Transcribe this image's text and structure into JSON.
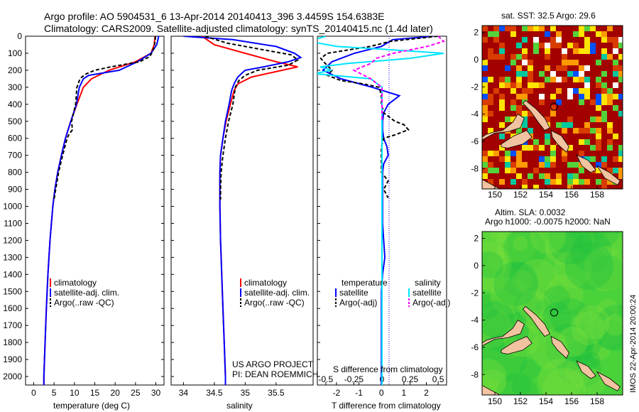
{
  "header": {
    "line1": "Argo profile: AO 5904531_6 13-Apr-2014 20140413_396 3.4459S 154.6383E",
    "line2": "Climatology: CARS2009. Satellite-adjusted climatology: synTS_20140415.nc (1.4d later)"
  },
  "colors": {
    "climatology": "#ff0000",
    "satellite": "#0000ff",
    "argo": "#000000",
    "satellite_s": "#00e5ff",
    "argo_s": "#ff00ff"
  },
  "panels": {
    "temperature": {
      "xlabel": "temperature (deg C)",
      "xticks": [
        "0",
        "5",
        "10",
        "15",
        "20",
        "25",
        "30"
      ]
    },
    "salinity": {
      "xlabel": "salinity",
      "xticks": [
        "34",
        "34.5",
        "35",
        "35.5"
      ]
    },
    "difference": {
      "xlabel": "T difference from climatology",
      "xticks": [
        "-2",
        "-1",
        "0",
        "1",
        "2"
      ],
      "s_label": "S difference from climatology",
      "s_ticks": [
        "-0.5",
        "-0.25",
        "0",
        "0.25",
        "0.5"
      ]
    }
  },
  "yticks": [
    "0",
    "100",
    "200",
    "300",
    "400",
    "500",
    "600",
    "700",
    "800",
    "900",
    "1000",
    "1100",
    "1200",
    "1300",
    "1400",
    "1500",
    "1600",
    "1700",
    "1800",
    "1900",
    "2000"
  ],
  "legend_main": [
    "climatology",
    "satellite-adj. clim.",
    "Argo(..raw -QC)"
  ],
  "legend_diff": {
    "temp_header": "temperature",
    "sal_header": "salinity",
    "items": [
      "satellite",
      "Argo(-adj)",
      "satellite",
      "Argo(-adj)"
    ]
  },
  "project": {
    "line1": "US ARGO PROJECT",
    "line2": "PI: DEAN ROEMMICH"
  },
  "maps": {
    "sst_title": "sat. SST: 32.5 Argo: 29.6",
    "sla_title1": "Altim. SLA: 0.0032",
    "sla_title2": "Argo h1000: -0.0075 h2000: NaN",
    "sst_yticks": [
      "2",
      "0",
      "-2",
      "-4",
      "-6",
      "-8"
    ],
    "sla_yticks": [
      "2",
      "0",
      "-2",
      "-4",
      "-6",
      "-8"
    ],
    "xticks": [
      "150",
      "152",
      "154",
      "156",
      "158"
    ],
    "credit": "IMOS 22-Apr-2014 20:00:24"
  },
  "chart_data": [
    {
      "type": "line",
      "xlabel": "temperature (deg C)",
      "ylabel": "",
      "xlim": [
        -2,
        32
      ],
      "ylim": [
        2050,
        0
      ],
      "series": [
        {
          "name": "climatology",
          "depth": [
            0,
            50,
            100,
            150,
            200,
            250,
            300,
            400,
            500,
            600,
            700,
            800,
            900,
            1000,
            1200,
            1400,
            1600,
            1800,
            2000,
            2050
          ],
          "values": [
            29.8,
            29.6,
            28.8,
            25,
            18.5,
            14.2,
            12.2,
            10.6,
            9.1,
            7.8,
            6.8,
            5.9,
            5.2,
            4.7,
            4,
            3.5,
            3.1,
            2.8,
            2.5,
            2.5
          ]
        },
        {
          "name": "satellite-adj. clim.",
          "depth": [
            0,
            50,
            100,
            150,
            200,
            230,
            250,
            300,
            400,
            500,
            600,
            700,
            800,
            900,
            1000,
            1200,
            1400,
            1600,
            1800,
            2000,
            2050
          ],
          "values": [
            30.7,
            30.2,
            28.8,
            25.5,
            21,
            13.5,
            12.2,
            11.2,
            10.5,
            9.1,
            7.8,
            6.8,
            5.9,
            5.2,
            4.7,
            4,
            3.5,
            3.1,
            2.8,
            2.5,
            2.5
          ]
        },
        {
          "name": "Argo(..raw -QC)",
          "depth": [
            0,
            30,
            60,
            90,
            120,
            150,
            180,
            200,
            220,
            240,
            260,
            300,
            400,
            500,
            550,
            580,
            600,
            700,
            800,
            900,
            960
          ],
          "values": [
            29.9,
            29.8,
            29.6,
            29.2,
            28.5,
            26,
            19,
            15,
            13,
            11.8,
            11.2,
            10.6,
            10.3,
            9.3,
            9.5,
            8.6,
            8.2,
            7.1,
            6.1,
            5.4,
            5
          ]
        }
      ]
    },
    {
      "type": "line",
      "xlabel": "salinity",
      "ylabel": "",
      "xlim": [
        33.8,
        36.1
      ],
      "ylim": [
        2050,
        0
      ],
      "series": [
        {
          "name": "climatology",
          "depth": [
            0,
            50,
            100,
            150,
            180,
            200,
            240,
            280,
            320,
            400,
            500,
            600,
            700,
            800,
            900,
            1000,
            1200,
            1400,
            1600,
            1800,
            2000,
            2050
          ],
          "values": [
            34.3,
            34.5,
            35.0,
            35.5,
            35.85,
            35.6,
            35.1,
            34.88,
            34.82,
            34.76,
            34.69,
            34.64,
            34.6,
            34.59,
            34.59,
            34.59,
            34.6,
            34.62,
            34.64,
            34.66,
            34.68,
            34.68
          ]
        },
        {
          "name": "satellite-adj. clim.",
          "depth": [
            0,
            20,
            60,
            100,
            125,
            150,
            180,
            200,
            240,
            280,
            320,
            400,
            500,
            600,
            700,
            800,
            900,
            1000,
            1200,
            1400,
            1600,
            1800,
            2000,
            2050
          ],
          "values": [
            34.0,
            34.8,
            35.5,
            35.8,
            35.9,
            35.7,
            35.3,
            35.0,
            34.88,
            34.82,
            34.78,
            34.74,
            34.68,
            34.64,
            34.6,
            34.59,
            34.59,
            34.59,
            34.6,
            34.62,
            34.64,
            34.66,
            34.68,
            34.68
          ]
        },
        {
          "name": "Argo(..raw -QC)",
          "depth": [
            0,
            40,
            80,
            110,
            140,
            170,
            200,
            230,
            260,
            300,
            400,
            500,
            600,
            700,
            800,
            900,
            960
          ],
          "values": [
            34.35,
            34.7,
            35.3,
            35.75,
            35.85,
            35.7,
            35.2,
            35.0,
            34.9,
            34.84,
            34.8,
            34.73,
            34.68,
            34.64,
            34.61,
            34.6,
            34.6
          ]
        }
      ]
    },
    {
      "type": "line",
      "xlabel": "T difference from climatology",
      "ylabel": "",
      "xlim": [
        -2.85,
        2.9
      ],
      "ylim": [
        2050,
        0
      ],
      "series": [
        {
          "name": "satellite",
          "depth": [
            0,
            20,
            60,
            100,
            150,
            200,
            250,
            300,
            350,
            400,
            450,
            500,
            550,
            600,
            650,
            700,
            750,
            800,
            900,
            1000,
            1100,
            1200,
            1300,
            1400,
            1500,
            1700,
            1900,
            2050
          ],
          "values": [
            2.3,
            0.5,
            0,
            -1.2,
            -2.2,
            -2.6,
            -1.8,
            -0.4,
            0.8,
            0.3,
            0.1,
            0.05,
            0.05,
            0.1,
            0.25,
            0.3,
            0.1,
            0.05,
            0.05,
            0.05,
            0.05,
            0.1,
            0.15,
            0.05,
            0,
            0,
            0,
            0
          ]
        },
        {
          "name": "Argo(-adj)",
          "depth": [
            0,
            30,
            60,
            100,
            130,
            160,
            200,
            230,
            260,
            280,
            300,
            350,
            400,
            450,
            500,
            520,
            550,
            580,
            600,
            650,
            700,
            750,
            800,
            850,
            900,
            950
          ],
          "values": [
            2.5,
            0.4,
            -0.5,
            -2.4,
            -2.7,
            -2.5,
            -2.2,
            -2.4,
            -1.8,
            -0.8,
            -0.1,
            0,
            0,
            0.1,
            0.6,
            1.0,
            1.2,
            0.6,
            0.1,
            0,
            0,
            0,
            0,
            0.3,
            0.1,
            0.3
          ]
        },
        {
          "name": "satellite",
          "depth": [
            0,
            30,
            60,
            80,
            100,
            130,
            160,
            180,
            200,
            220,
            250,
            300,
            400,
            500,
            700,
            1000,
            1500,
            2050
          ],
          "values": [
            -0.5,
            -0.65,
            -0.4,
            0.1,
            0.55,
            0.25,
            -0.3,
            -0.55,
            -0.45,
            -0.6,
            -0.1,
            0,
            0,
            0,
            0,
            0,
            0,
            0
          ]
        },
        {
          "name": "Argo(-adj)",
          "depth": [
            0,
            30,
            60,
            100,
            130,
            160,
            200,
            250,
            300,
            400,
            500
          ],
          "values": [
            0.5,
            0.55,
            0.4,
            0.1,
            -0.05,
            -0.1,
            -0.25,
            -0.1,
            0,
            0,
            0
          ]
        }
      ]
    },
    {
      "type": "heatmap",
      "title": "sat. SST: 32.5 Argo: 29.6",
      "xlim": [
        149,
        160
      ],
      "ylim": [
        -9.5,
        2.5
      ],
      "xticks": [
        150,
        152,
        154,
        156,
        158
      ],
      "yticks": [
        2,
        0,
        -2,
        -4,
        -6,
        -8
      ]
    },
    {
      "type": "heatmap",
      "title": "Altim. SLA: 0.0032 / Argo h1000: -0.0075 h2000: NaN",
      "xlim": [
        149,
        160
      ],
      "ylim": [
        -9.5,
        2.5
      ],
      "xticks": [
        150,
        152,
        154,
        156,
        158
      ],
      "yticks": [
        2,
        0,
        -2,
        -4,
        -6,
        -8
      ]
    }
  ]
}
